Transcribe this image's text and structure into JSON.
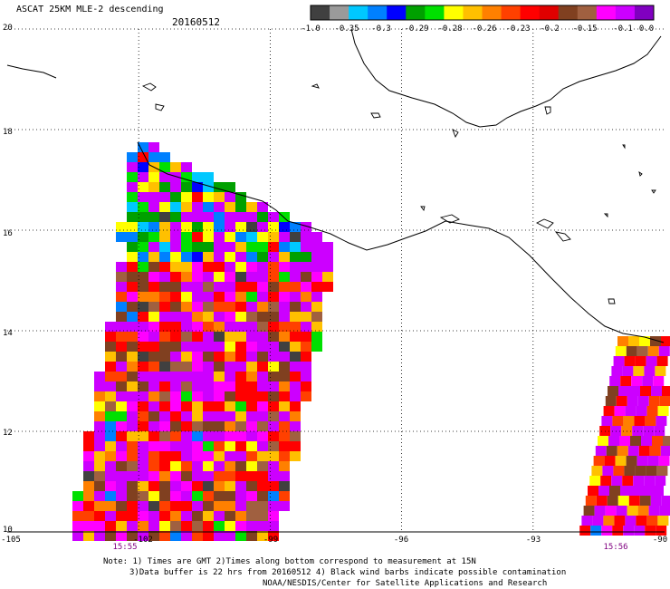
{
  "header": {
    "title": "ASCAT 25KM MLE-2 descending",
    "date": "20160512"
  },
  "colorbar": {
    "tick_labels": [
      "-1.0",
      "-0.35",
      "-0.3",
      "-0.29",
      "-0.28",
      "-0.26",
      "-0.23",
      "-0.2",
      "-0.15",
      "-0.1",
      "0.0"
    ],
    "colors": [
      "#404040",
      "#9a9a9a",
      "#00c8ff",
      "#0080ff",
      "#0000ff",
      "#00a000",
      "#00e000",
      "#ffff00",
      "#ffc000",
      "#ff8000",
      "#ff4000",
      "#ff0000",
      "#e00000",
      "#804020",
      "#a06040",
      "#ff00ff",
      "#cc00ff",
      "#8000c0"
    ]
  },
  "axes": {
    "lat_labels": [
      "20",
      "18",
      "16",
      "14",
      "12",
      "10"
    ],
    "lon_labels": [
      "-105",
      "-102",
      "-99",
      "-96",
      "-93",
      "-90"
    ],
    "lat_range": [
      10,
      20
    ],
    "lon_range": [
      -105,
      -90
    ]
  },
  "pass_times": [
    "15:55",
    "15:56"
  ],
  "notes": {
    "line1": "Note: 1) Times are GMT 2)Times along bottom correspond to measurement at 15N",
    "line2": "3)Data buffer is 22 hrs from 20160512 4) Black wind barbs indicate possible contamination",
    "line3": "NOAA/NESDIS/Center for Satellite Applications and Research"
  }
}
